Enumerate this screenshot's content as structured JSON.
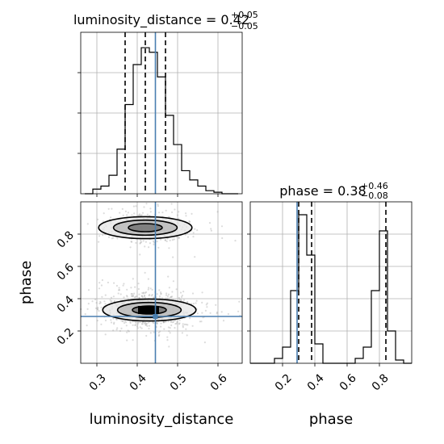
{
  "chart_data": [
    {
      "type": "histogram",
      "panel": "top-left",
      "title_main": "luminosity_distance = 0.42",
      "title_plus": "+0.05",
      "title_minus": "−0.05",
      "xlim": [
        0.26,
        0.66
      ],
      "xticks": [
        0.3,
        0.4,
        0.5,
        0.6
      ],
      "bin_edges": [
        0.27,
        0.29,
        0.31,
        0.33,
        0.35,
        0.37,
        0.39,
        0.41,
        0.43,
        0.45,
        0.47,
        0.49,
        0.51,
        0.53,
        0.55,
        0.57,
        0.59,
        0.61,
        0.63,
        0.65
      ],
      "counts": [
        0.0,
        0.03,
        0.05,
        0.12,
        0.29,
        0.58,
        0.84,
        0.95,
        0.92,
        0.76,
        0.51,
        0.32,
        0.15,
        0.09,
        0.05,
        0.02,
        0.01,
        0.0,
        0.0
      ],
      "quantiles": [
        0.37,
        0.42,
        0.47
      ],
      "truth": 0.445,
      "grid": true
    },
    {
      "type": "histogram",
      "panel": "bottom-right",
      "title_main": "phase = 0.38",
      "title_plus": "+0.46",
      "title_minus": "−0.08",
      "xlabel": "phase",
      "xlim": [
        0.0,
        1.0
      ],
      "xticks": [
        "0.2",
        "0.4",
        "0.6",
        "0.8"
      ],
      "tick_values": [
        0.2,
        0.4,
        0.6,
        0.8
      ],
      "bin_edges": [
        0.0,
        0.05,
        0.1,
        0.15,
        0.2,
        0.25,
        0.3,
        0.35,
        0.4,
        0.45,
        0.5,
        0.55,
        0.6,
        0.65,
        0.7,
        0.75,
        0.8,
        0.85,
        0.9,
        0.95,
        1.0
      ],
      "counts": [
        0.0,
        0.0,
        0.0,
        0.03,
        0.1,
        0.45,
        0.92,
        0.67,
        0.12,
        0.0,
        0.0,
        0.0,
        0.0,
        0.03,
        0.1,
        0.45,
        0.82,
        0.2,
        0.02,
        0.0
      ],
      "quantiles": [
        0.3,
        0.38,
        0.84
      ],
      "truth": 0.29,
      "grid": true
    },
    {
      "type": "scatter",
      "panel": "bottom-left",
      "xlabel": "luminosity_distance",
      "ylabel": "phase",
      "xlim": [
        0.26,
        0.66
      ],
      "ylim": [
        0.0,
        1.0
      ],
      "xticks": [
        "0.3",
        "0.4",
        "0.5",
        "0.6"
      ],
      "xtick_values": [
        0.3,
        0.4,
        0.5,
        0.6
      ],
      "yticks": [
        "0.2",
        "0.4",
        "0.6",
        "0.8"
      ],
      "ytick_values": [
        0.2,
        0.4,
        0.6,
        0.8
      ],
      "clusters": [
        {
          "center": [
            0.42,
            0.84
          ],
          "spread": [
            0.05,
            0.05
          ],
          "density": 0.45
        },
        {
          "center": [
            0.43,
            0.33
          ],
          "spread": [
            0.05,
            0.05
          ],
          "density": 1.0
        }
      ],
      "truth": [
        0.445,
        0.29
      ],
      "grid": true
    }
  ]
}
